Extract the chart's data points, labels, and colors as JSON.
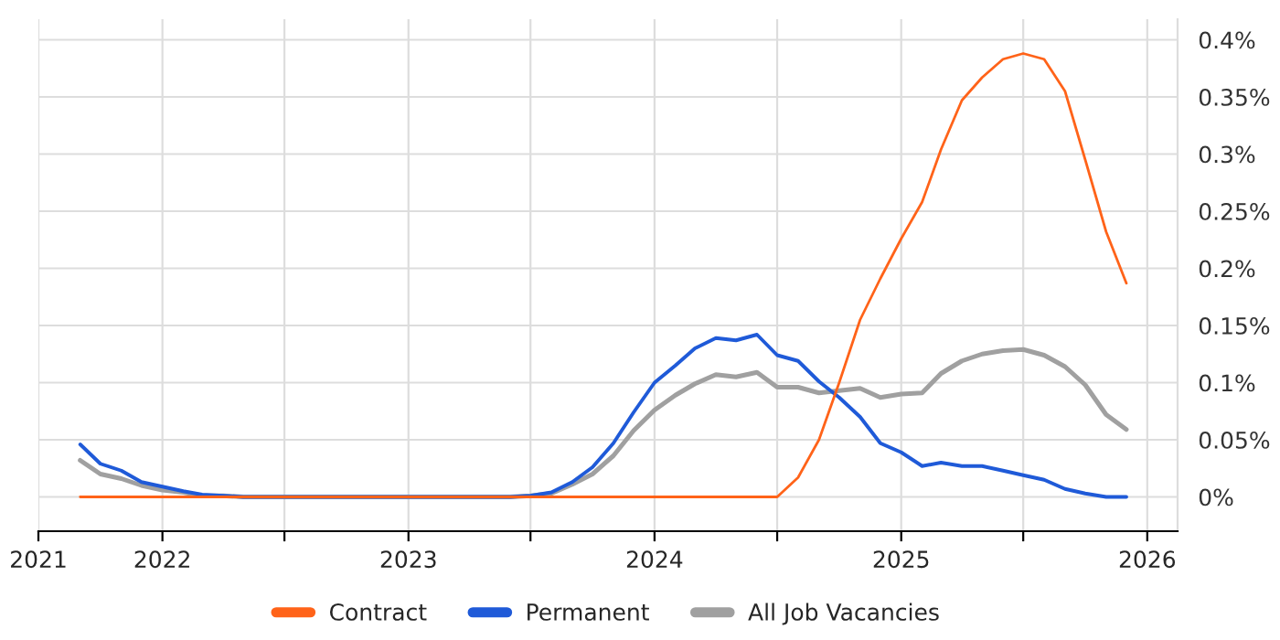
{
  "chart_data": {
    "type": "line",
    "x": [
      "2021-09",
      "2021-10",
      "2021-11",
      "2021-12",
      "2022-01",
      "2022-02",
      "2022-03",
      "2022-04",
      "2022-05",
      "2022-06",
      "2022-07",
      "2022-08",
      "2022-09",
      "2022-10",
      "2022-11",
      "2022-12",
      "2023-01",
      "2023-02",
      "2023-03",
      "2023-04",
      "2023-05",
      "2023-06",
      "2023-07",
      "2023-08",
      "2023-09",
      "2023-10",
      "2023-11",
      "2023-12",
      "2024-01",
      "2024-02",
      "2024-03",
      "2024-04",
      "2024-05",
      "2024-06",
      "2024-07",
      "2024-08",
      "2024-09",
      "2024-10",
      "2024-11",
      "2024-12",
      "2025-01",
      "2025-02",
      "2025-03",
      "2025-04",
      "2025-05",
      "2025-06",
      "2025-07",
      "2025-08",
      "2025-09",
      "2025-10",
      "2025-11",
      "2025-12"
    ],
    "series": [
      {
        "name": "Contract",
        "color": "#ff6319",
        "values": [
          0,
          0,
          0,
          0,
          0,
          0,
          0,
          0,
          0,
          0,
          0,
          0,
          0,
          0,
          0,
          0,
          0,
          0,
          0,
          0,
          0,
          0,
          0,
          0,
          0,
          0,
          0,
          0,
          0,
          0,
          0,
          0,
          0,
          0,
          0,
          0.017,
          0.05,
          0.1,
          0.155,
          0.191,
          0.226,
          0.258,
          0.304,
          0.347,
          0.367,
          0.383,
          0.388,
          0.383,
          0.355,
          0.295,
          0.232,
          0.187
        ]
      },
      {
        "name": "Permanent",
        "color": "#1f5ad8",
        "values": [
          0.046,
          0.029,
          0.023,
          0.013,
          0.009,
          0.005,
          0.002,
          0.001,
          0,
          0,
          0,
          0,
          0,
          0,
          0,
          0,
          0,
          0,
          0,
          0,
          0,
          0,
          0.001,
          0.004,
          0.013,
          0.026,
          0.047,
          0.074,
          0.1,
          0.115,
          0.13,
          0.139,
          0.137,
          0.142,
          0.124,
          0.119,
          0.101,
          0.087,
          0.07,
          0.047,
          0.039,
          0.027,
          0.03,
          0.027,
          0.027,
          0.023,
          0.019,
          0.015,
          0.007,
          0.003,
          0,
          0
        ]
      },
      {
        "name": "All Job Vacancies",
        "color": "#a0a0a0",
        "values": [
          0.032,
          0.02,
          0.016,
          0.01,
          0.006,
          0.004,
          0.001,
          0.001,
          0,
          0,
          0,
          0,
          0,
          0,
          0,
          0,
          0,
          0,
          0,
          0,
          0,
          0,
          0.001,
          0.003,
          0.011,
          0.02,
          0.036,
          0.058,
          0.076,
          0.089,
          0.099,
          0.107,
          0.105,
          0.109,
          0.096,
          0.096,
          0.091,
          0.093,
          0.095,
          0.087,
          0.09,
          0.091,
          0.108,
          0.119,
          0.125,
          0.128,
          0.129,
          0.124,
          0.114,
          0.098,
          0.072,
          0.059
        ]
      }
    ],
    "xlim": [
      "2021-07-01",
      "2026-02-15"
    ],
    "xticks": [
      {
        "value": "2021-07-01",
        "label": "2021"
      },
      {
        "value": "2022-01-01",
        "label": "2022"
      },
      {
        "value": "2022-07-01",
        "label": null
      },
      {
        "value": "2023-01-01",
        "label": "2023"
      },
      {
        "value": "2023-07-01",
        "label": null
      },
      {
        "value": "2024-01-01",
        "label": "2024"
      },
      {
        "value": "2024-07-01",
        "label": null
      },
      {
        "value": "2025-01-01",
        "label": "2025"
      },
      {
        "value": "2025-07-01",
        "label": null
      },
      {
        "value": "2026-01-01",
        "label": "2026"
      }
    ],
    "ylim": [
      -0.03,
      0.418
    ],
    "yticks": [
      {
        "value": 0,
        "label": "0%"
      },
      {
        "value": 0.05,
        "label": "0.05%"
      },
      {
        "value": 0.1,
        "label": "0.1%"
      },
      {
        "value": 0.15,
        "label": "0.15%"
      },
      {
        "value": 0.2,
        "label": "0.2%"
      },
      {
        "value": 0.25,
        "label": "0.25%"
      },
      {
        "value": 0.3,
        "label": "0.3%"
      },
      {
        "value": 0.35,
        "label": "0.35%"
      },
      {
        "value": 0.4,
        "label": "0.4%"
      }
    ],
    "grid": true,
    "legend": "bottom",
    "line_style": "solid"
  }
}
